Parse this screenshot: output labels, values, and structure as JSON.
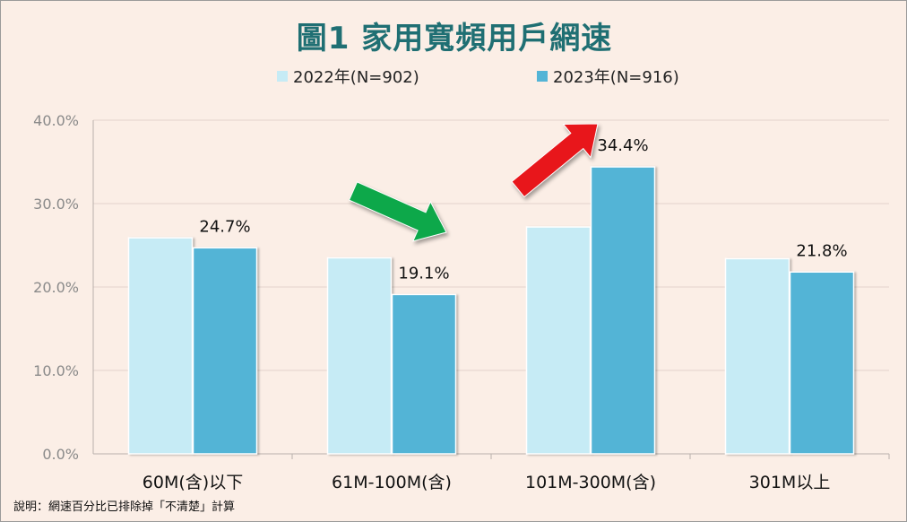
{
  "page": {
    "title": "圖1 家用寬頻用戶網速",
    "note": "說明：網速百分比已排除掉「不清楚」計算"
  },
  "colors": {
    "background": "#FBEEE6",
    "series_2022": "#C6EBF5",
    "series_2023": "#53B4D6",
    "title": "#1F6F73",
    "grid": "#E3D3CC"
  },
  "annotations": {
    "down_arrow": {
      "icon": "green-down-arrow-icon",
      "color": "#0DA84A"
    },
    "up_arrow": {
      "icon": "red-up-arrow-icon",
      "color": "#E8161B"
    }
  },
  "chart_data": {
    "type": "bar",
    "title": "圖1 家用寬頻用戶網速",
    "xlabel": "",
    "ylabel": "",
    "categories": [
      "60M(含)以下",
      "61M-100M(含)",
      "101M-300M(含)",
      "301M以上"
    ],
    "series": [
      {
        "name": "2022年(N=902)",
        "values": [
          25.9,
          23.5,
          27.2,
          23.4
        ],
        "labels": [
          "",
          "",
          "",
          ""
        ]
      },
      {
        "name": "2023年(N=916)",
        "values": [
          24.7,
          19.1,
          34.4,
          21.8
        ],
        "labels": [
          "24.7%",
          "19.1%",
          "34.4%",
          "21.8%"
        ]
      }
    ],
    "ylim": [
      0,
      40
    ],
    "yticks": [
      "0.0%",
      "10.0%",
      "20.0%",
      "30.0%",
      "40.0%"
    ],
    "grid": true,
    "legend_position": "top"
  }
}
